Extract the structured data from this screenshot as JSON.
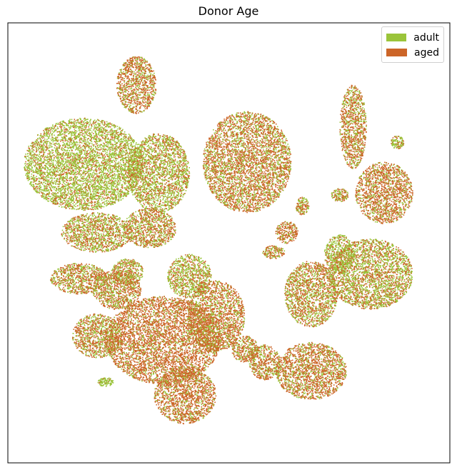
{
  "chart_data": {
    "type": "scatter",
    "title": "Donor Age",
    "xlabel": "",
    "ylabel": "",
    "axis_ticks": false,
    "grid": false,
    "legend_position": "top-right",
    "series": [
      {
        "name": "adult",
        "color": "#9ac43a"
      },
      {
        "name": "aged",
        "color": "#cc6528"
      }
    ],
    "regions": [
      {
        "x": -5.2,
        "y": 8.2,
        "rx": 0.9,
        "ry": 1.3,
        "mix": 0.3
      },
      {
        "x": -7.6,
        "y": 4.6,
        "rx": 2.7,
        "ry": 2.1,
        "mix": 0.72
      },
      {
        "x": -4.2,
        "y": 4.2,
        "rx": 1.4,
        "ry": 1.8,
        "mix": 0.6
      },
      {
        "x": -7.0,
        "y": 1.5,
        "rx": 1.6,
        "ry": 0.9,
        "mix": 0.5
      },
      {
        "x": -7.8,
        "y": -0.6,
        "rx": 1.3,
        "ry": 0.7,
        "mix": 0.45
      },
      {
        "x": -4.6,
        "y": 1.7,
        "rx": 1.2,
        "ry": 0.9,
        "mix": 0.45
      },
      {
        "x": -5.6,
        "y": -0.3,
        "rx": 0.7,
        "ry": 0.6,
        "mix": 0.5
      },
      {
        "x": -2.8,
        "y": -0.5,
        "rx": 1.0,
        "ry": 1.0,
        "mix": 0.6
      },
      {
        "x": -0.2,
        "y": 4.7,
        "rx": 2.0,
        "ry": 2.3,
        "mix": 0.35
      },
      {
        "x": 1.6,
        "y": 1.5,
        "rx": 0.5,
        "ry": 0.5,
        "mix": 0.3
      },
      {
        "x": 2.3,
        "y": 2.7,
        "rx": 0.3,
        "ry": 0.4,
        "mix": 0.4
      },
      {
        "x": 2.7,
        "y": -1.3,
        "rx": 1.2,
        "ry": 1.5,
        "mix": 0.45
      },
      {
        "x": 4.6,
        "y": 6.3,
        "rx": 0.6,
        "ry": 1.9,
        "mix": 0.35
      },
      {
        "x": 6.0,
        "y": 3.3,
        "rx": 1.3,
        "ry": 1.4,
        "mix": 0.3
      },
      {
        "x": 6.6,
        "y": 5.6,
        "rx": 0.3,
        "ry": 0.3,
        "mix": 0.7
      },
      {
        "x": 5.4,
        "y": -0.4,
        "rx": 1.9,
        "ry": 1.6,
        "mix": 0.55
      },
      {
        "x": 4.0,
        "y": 0.5,
        "rx": 0.7,
        "ry": 0.9,
        "mix": 0.7
      },
      {
        "x": -4.0,
        "y": -3.4,
        "rx": 2.6,
        "ry": 2.0,
        "mix": 0.2
      },
      {
        "x": -7.0,
        "y": -3.2,
        "rx": 1.1,
        "ry": 1.0,
        "mix": 0.4
      },
      {
        "x": -6.1,
        "y": -1.1,
        "rx": 1.1,
        "ry": 0.9,
        "mix": 0.4
      },
      {
        "x": -3.0,
        "y": -5.9,
        "rx": 1.4,
        "ry": 1.3,
        "mix": 0.25
      },
      {
        "x": -1.6,
        "y": -2.3,
        "rx": 1.3,
        "ry": 1.6,
        "mix": 0.3
      },
      {
        "x": -0.3,
        "y": -3.8,
        "rx": 0.6,
        "ry": 0.6,
        "mix": 0.4
      },
      {
        "x": 0.6,
        "y": -4.4,
        "rx": 0.7,
        "ry": 0.8,
        "mix": 0.35
      },
      {
        "x": 2.7,
        "y": -4.8,
        "rx": 1.6,
        "ry": 1.3,
        "mix": 0.3
      },
      {
        "x": -6.6,
        "y": -5.3,
        "rx": 0.35,
        "ry": 0.2,
        "mix": 0.9
      },
      {
        "x": 4.0,
        "y": 3.2,
        "rx": 0.4,
        "ry": 0.3,
        "mix": 0.4
      },
      {
        "x": 1.0,
        "y": 0.6,
        "rx": 0.5,
        "ry": 0.3,
        "mix": 0.4
      }
    ]
  }
}
